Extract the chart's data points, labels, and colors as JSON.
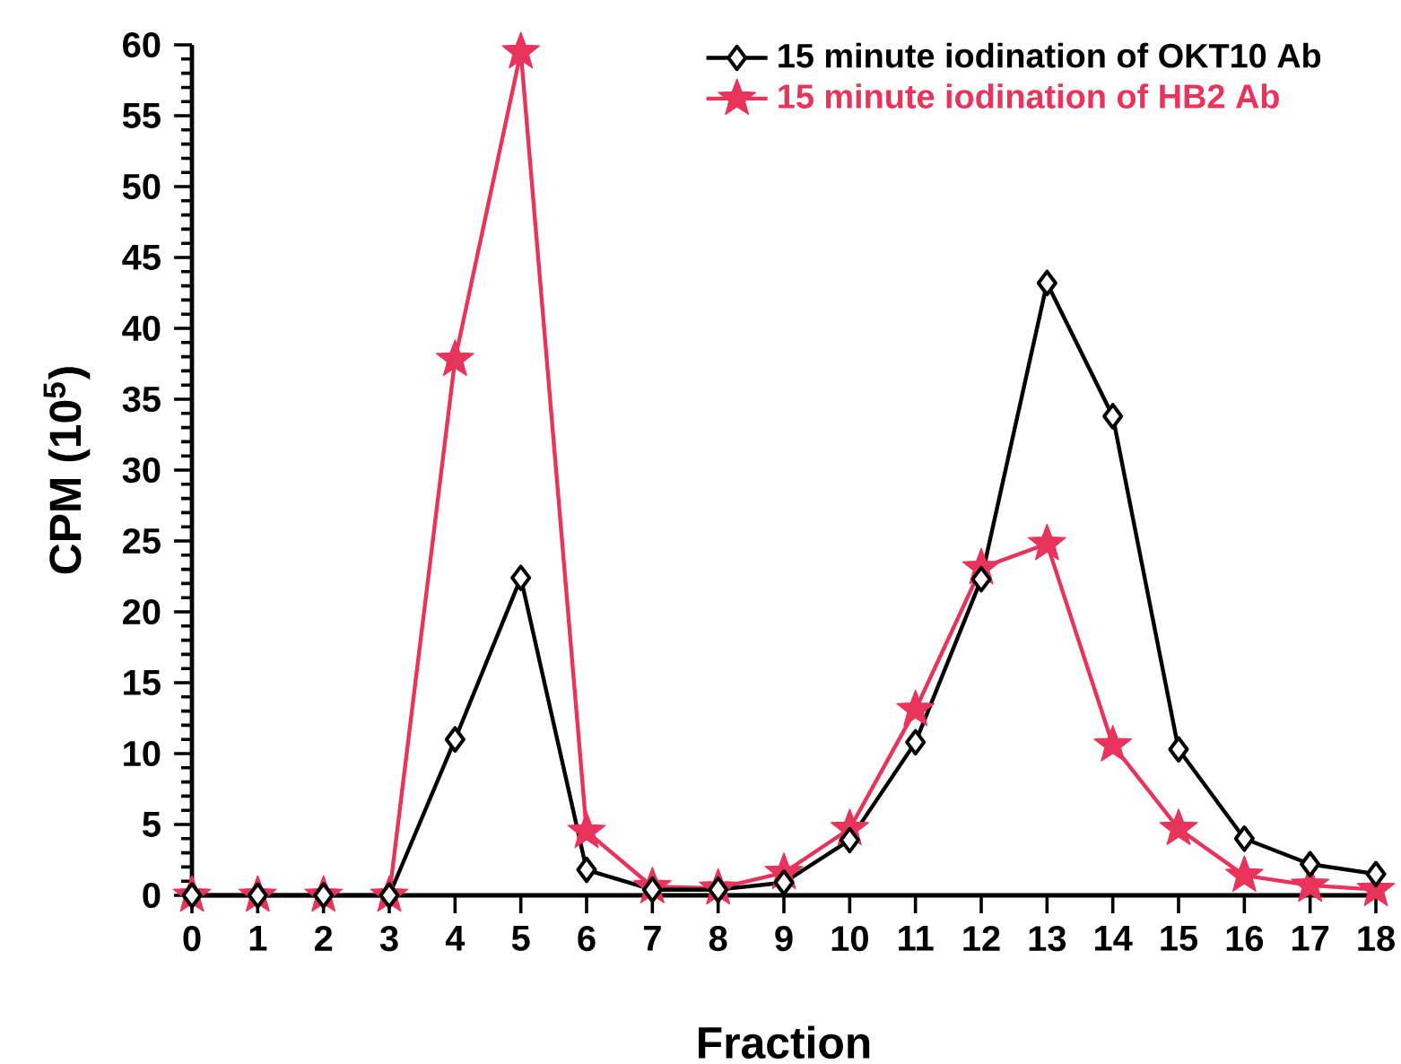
{
  "chart_data": {
    "type": "line",
    "xlabel": "Fraction",
    "ylabel": "CPM (10$^{5}$)",
    "x": [
      0,
      1,
      2,
      3,
      4,
      5,
      6,
      7,
      8,
      9,
      10,
      11,
      12,
      13,
      14,
      15,
      16,
      17,
      18
    ],
    "xlim": [
      0,
      18
    ],
    "xticks": [
      0,
      1,
      2,
      3,
      4,
      5,
      6,
      7,
      8,
      9,
      10,
      11,
      12,
      13,
      14,
      15,
      16,
      17,
      18
    ],
    "ylim": [
      0,
      60
    ],
    "yticks": [
      0,
      5,
      10,
      15,
      20,
      25,
      30,
      35,
      40,
      45,
      50,
      55,
      60
    ],
    "grid": false,
    "legend": "top right",
    "line_style": "solid",
    "series": [
      {
        "name": "15 minute iodination of OKT10 Ab",
        "color": "#000000",
        "marker": "diamond",
        "values": [
          0,
          0,
          0,
          0,
          11.0,
          22.4,
          1.8,
          0.4,
          0.4,
          0.9,
          3.9,
          10.8,
          22.3,
          43.2,
          33.8,
          10.3,
          4.0,
          2.2,
          1.5
        ]
      },
      {
        "name": "15 minute iodination of HB2 Ab",
        "color": "#e8335a",
        "marker": "star",
        "values": [
          0,
          0,
          0,
          0,
          37.8,
          59.5,
          4.5,
          0.6,
          0.5,
          1.6,
          4.7,
          13.1,
          23.1,
          24.8,
          10.6,
          4.7,
          1.4,
          0.7,
          0.4
        ]
      }
    ]
  }
}
